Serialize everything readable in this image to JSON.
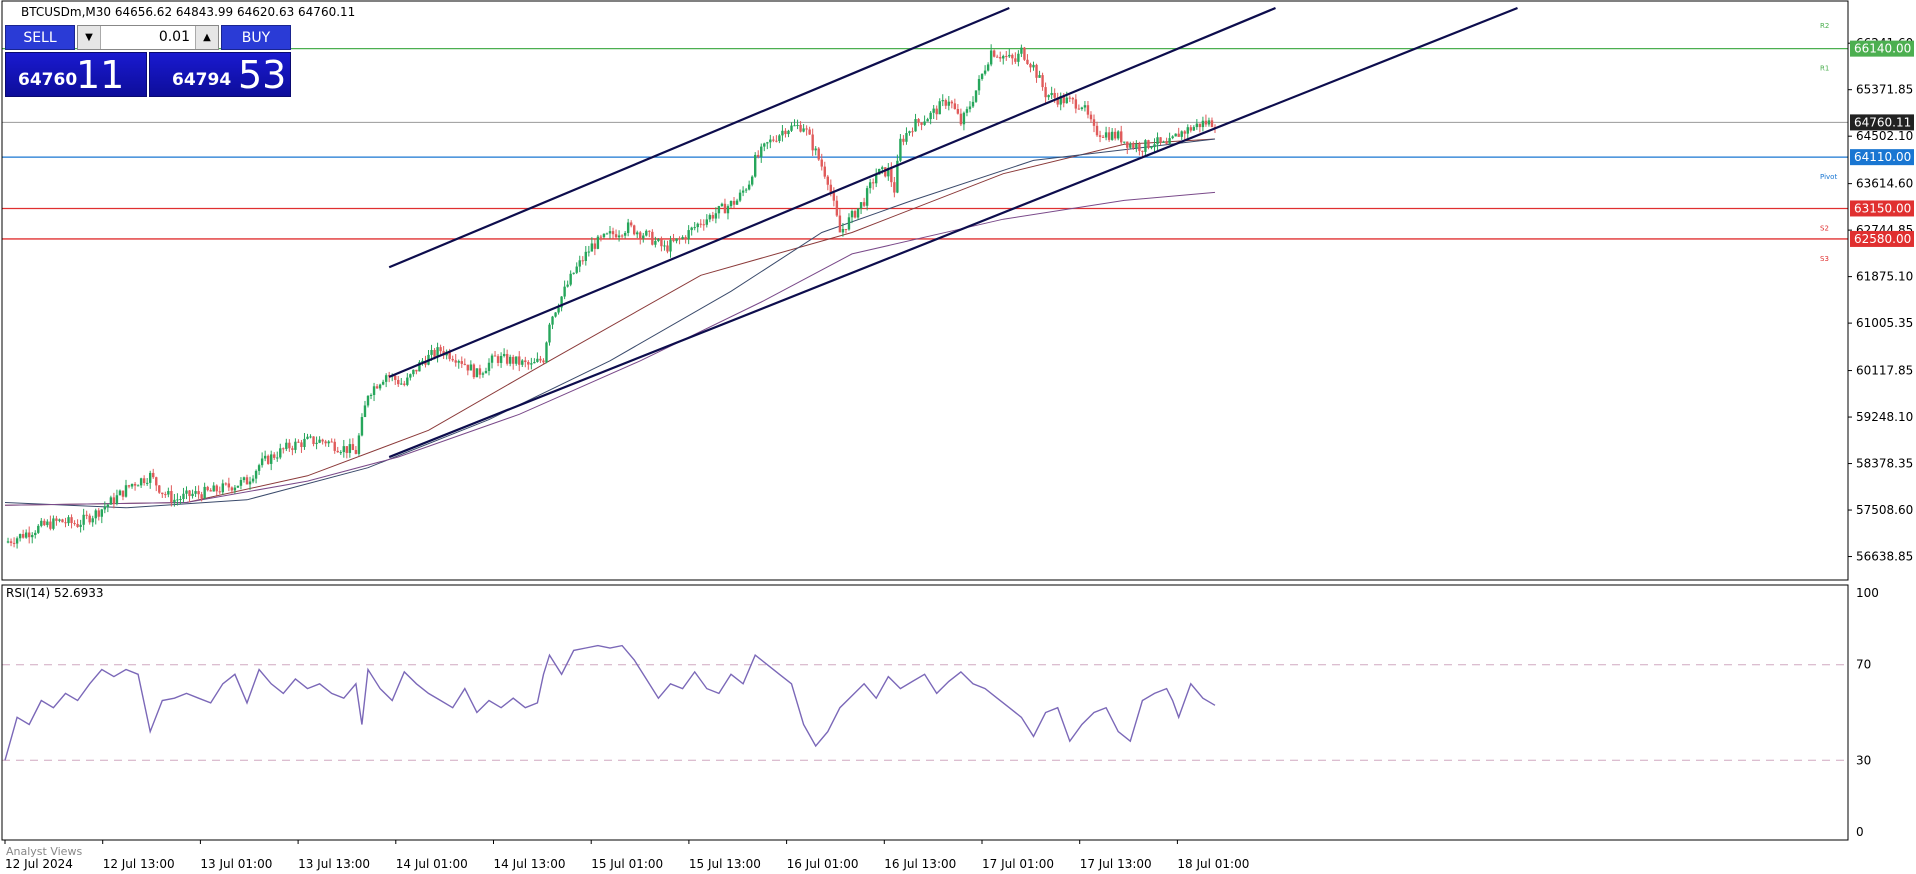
{
  "header": {
    "symbol_line": "BTCUSDm,M30  64656.62 64843.99 64620.63 64760.11"
  },
  "trade_panel": {
    "sell_label": "SELL",
    "buy_label": "BUY",
    "volume": "0.01",
    "bid_small": "64760",
    "bid_big": "11",
    "ask_small": "64794",
    "ask_big": "53"
  },
  "rsi_label": "RSI(14) 52.6933",
  "analyst_label": "Analyst Views",
  "colors": {
    "bull": "#26a65b",
    "bear": "#e05a5a",
    "channel": "#0d0d4d",
    "support": "#e03030",
    "pivot": "#1976d2",
    "resistance": "#4caf50",
    "rsi": "#7b68b8"
  },
  "chart_data": [
    {
      "type": "candlestick",
      "title": "BTCUSDm,M30",
      "ylim": [
        56200,
        66900
      ],
      "y_ticks": [
        "66241.60",
        "65371.85",
        "64502.10",
        "63614.60",
        "62744.85",
        "61875.10",
        "61005.35",
        "60117.85",
        "59248.10",
        "58378.35",
        "57508.60",
        "56638.85"
      ],
      "x_ticks": [
        "12 Jul 2024",
        "12 Jul 13:00",
        "13 Jul 01:00",
        "13 Jul 13:00",
        "14 Jul 01:00",
        "14 Jul 13:00",
        "15 Jul 01:00",
        "15 Jul 13:00",
        "16 Jul 01:00",
        "16 Jul 13:00",
        "17 Jul 01:00",
        "17 Jul 13:00",
        "18 Jul 01:00"
      ],
      "current_price": "64760.11",
      "horizontal_levels": [
        {
          "price": 66140,
          "label": "66140.00",
          "tag": "R1",
          "kind": "resistance"
        },
        {
          "price": 64110,
          "label": "64110.00",
          "tag": "Pivot",
          "kind": "pivot"
        },
        {
          "price": 63150,
          "label": "63150.00",
          "tag": "S2",
          "kind": "support"
        },
        {
          "price": 62580,
          "label": "62580.00",
          "tag": "S3",
          "kind": "support"
        }
      ],
      "r2_tag": "R2",
      "close_path": [
        [
          0,
          56900
        ],
        [
          6,
          57050
        ],
        [
          12,
          57200
        ],
        [
          18,
          57300
        ],
        [
          24,
          57250
        ],
        [
          30,
          57450
        ],
        [
          36,
          57700
        ],
        [
          42,
          58000
        ],
        [
          48,
          58150
        ],
        [
          52,
          57850
        ],
        [
          56,
          57700
        ],
        [
          62,
          57800
        ],
        [
          68,
          57850
        ],
        [
          74,
          57950
        ],
        [
          80,
          58050
        ],
        [
          84,
          58350
        ],
        [
          88,
          58500
        ],
        [
          94,
          58700
        ],
        [
          100,
          58800
        ],
        [
          106,
          58800
        ],
        [
          110,
          58700
        ],
        [
          116,
          58600
        ],
        [
          120,
          59700
        ],
        [
          126,
          60050
        ],
        [
          132,
          59850
        ],
        [
          138,
          60300
        ],
        [
          144,
          60500
        ],
        [
          150,
          60350
        ],
        [
          156,
          60050
        ],
        [
          162,
          60350
        ],
        [
          168,
          60300
        ],
        [
          174,
          60200
        ],
        [
          178,
          60350
        ],
        [
          180,
          61050
        ],
        [
          184,
          61500
        ],
        [
          188,
          61950
        ],
        [
          194,
          62450
        ],
        [
          200,
          62650
        ],
        [
          206,
          62800
        ],
        [
          212,
          62650
        ],
        [
          218,
          62400
        ],
        [
          224,
          62600
        ],
        [
          230,
          62900
        ],
        [
          236,
          63100
        ],
        [
          242,
          63300
        ],
        [
          246,
          63650
        ],
        [
          248,
          64050
        ],
        [
          252,
          64350
        ],
        [
          258,
          64650
        ],
        [
          264,
          64700
        ],
        [
          268,
          64200
        ],
        [
          272,
          63700
        ],
        [
          276,
          62700
        ],
        [
          280,
          63000
        ],
        [
          284,
          63300
        ],
        [
          288,
          63800
        ],
        [
          292,
          63850
        ],
        [
          294,
          63500
        ],
        [
          296,
          64400
        ],
        [
          300,
          64700
        ],
        [
          306,
          64900
        ],
        [
          312,
          65200
        ],
        [
          316,
          64750
        ],
        [
          318,
          64950
        ],
        [
          322,
          65500
        ],
        [
          326,
          66100
        ],
        [
          330,
          66000
        ],
        [
          334,
          65900
        ],
        [
          336,
          66100
        ],
        [
          340,
          65800
        ],
        [
          344,
          65300
        ],
        [
          348,
          65200
        ],
        [
          352,
          65150
        ],
        [
          356,
          65100
        ],
        [
          360,
          64600
        ],
        [
          364,
          64550
        ],
        [
          368,
          64500
        ],
        [
          372,
          64350
        ],
        [
          376,
          64300
        ],
        [
          380,
          64400
        ],
        [
          384,
          64300
        ],
        [
          388,
          64550
        ],
        [
          392,
          64650
        ],
        [
          396,
          64750
        ],
        [
          400,
          64760
        ]
      ],
      "sma_slow": [
        [
          0,
          57600
        ],
        [
          60,
          57650
        ],
        [
          100,
          58150
        ],
        [
          140,
          59000
        ],
        [
          180,
          60300
        ],
        [
          230,
          61900
        ],
        [
          280,
          62700
        ],
        [
          330,
          63800
        ],
        [
          370,
          64350
        ],
        [
          400,
          64450
        ]
      ],
      "sma_mid": [
        [
          0,
          57650
        ],
        [
          40,
          57550
        ],
        [
          80,
          57700
        ],
        [
          120,
          58300
        ],
        [
          160,
          59200
        ],
        [
          200,
          60300
        ],
        [
          240,
          61600
        ],
        [
          270,
          62700
        ],
        [
          300,
          63300
        ],
        [
          340,
          64050
        ],
        [
          400,
          64450
        ]
      ],
      "sma_long": [
        [
          0,
          57600
        ],
        [
          60,
          57650
        ],
        [
          100,
          58050
        ],
        [
          130,
          58500
        ],
        [
          170,
          59300
        ],
        [
          210,
          60300
        ],
        [
          250,
          61400
        ],
        [
          280,
          62300
        ],
        [
          330,
          62950
        ],
        [
          370,
          63300
        ],
        [
          400,
          63450
        ]
      ],
      "channel_lines": [
        [
          [
            127,
            62050
          ],
          [
            332,
            66900
          ]
        ],
        [
          [
            127,
            60000
          ],
          [
            420,
            66900
          ]
        ],
        [
          [
            127,
            58500
          ],
          [
            500,
            66900
          ]
        ]
      ]
    },
    {
      "type": "line",
      "title": "RSI(14) 52.6933",
      "ylim": [
        0,
        100
      ],
      "y_ticks": [
        "100",
        "70",
        "30",
        "0"
      ],
      "levels": [
        70,
        30
      ],
      "values": [
        [
          0,
          30
        ],
        [
          4,
          48
        ],
        [
          8,
          45
        ],
        [
          12,
          55
        ],
        [
          16,
          52
        ],
        [
          20,
          58
        ],
        [
          24,
          55
        ],
        [
          28,
          62
        ],
        [
          32,
          68
        ],
        [
          36,
          65
        ],
        [
          40,
          68
        ],
        [
          44,
          66
        ],
        [
          48,
          42
        ],
        [
          52,
          55
        ],
        [
          56,
          56
        ],
        [
          60,
          58
        ],
        [
          64,
          56
        ],
        [
          68,
          54
        ],
        [
          72,
          62
        ],
        [
          76,
          66
        ],
        [
          80,
          54
        ],
        [
          84,
          68
        ],
        [
          88,
          62
        ],
        [
          92,
          58
        ],
        [
          96,
          64
        ],
        [
          100,
          60
        ],
        [
          104,
          62
        ],
        [
          108,
          58
        ],
        [
          112,
          56
        ],
        [
          116,
          62
        ],
        [
          118,
          45
        ],
        [
          120,
          68
        ],
        [
          124,
          60
        ],
        [
          128,
          55
        ],
        [
          132,
          67
        ],
        [
          136,
          62
        ],
        [
          140,
          58
        ],
        [
          144,
          55
        ],
        [
          148,
          52
        ],
        [
          152,
          60
        ],
        [
          156,
          50
        ],
        [
          160,
          55
        ],
        [
          164,
          52
        ],
        [
          168,
          56
        ],
        [
          172,
          52
        ],
        [
          176,
          54
        ],
        [
          178,
          66
        ],
        [
          180,
          74
        ],
        [
          184,
          66
        ],
        [
          188,
          76
        ],
        [
          192,
          77
        ],
        [
          196,
          78
        ],
        [
          200,
          77
        ],
        [
          204,
          78
        ],
        [
          208,
          72
        ],
        [
          212,
          64
        ],
        [
          216,
          56
        ],
        [
          220,
          62
        ],
        [
          224,
          60
        ],
        [
          228,
          67
        ],
        [
          232,
          60
        ],
        [
          236,
          58
        ],
        [
          240,
          66
        ],
        [
          244,
          62
        ],
        [
          248,
          74
        ],
        [
          252,
          70
        ],
        [
          256,
          66
        ],
        [
          260,
          62
        ],
        [
          264,
          45
        ],
        [
          268,
          36
        ],
        [
          272,
          42
        ],
        [
          276,
          52
        ],
        [
          280,
          57
        ],
        [
          284,
          62
        ],
        [
          288,
          56
        ],
        [
          292,
          65
        ],
        [
          296,
          60
        ],
        [
          300,
          63
        ],
        [
          304,
          66
        ],
        [
          308,
          58
        ],
        [
          312,
          63
        ],
        [
          316,
          67
        ],
        [
          320,
          62
        ],
        [
          324,
          60
        ],
        [
          328,
          56
        ],
        [
          332,
          52
        ],
        [
          336,
          48
        ],
        [
          340,
          40
        ],
        [
          344,
          50
        ],
        [
          348,
          52
        ],
        [
          352,
          38
        ],
        [
          356,
          45
        ],
        [
          360,
          50
        ],
        [
          364,
          52
        ],
        [
          368,
          42
        ],
        [
          372,
          38
        ],
        [
          376,
          55
        ],
        [
          380,
          58
        ],
        [
          384,
          60
        ],
        [
          386,
          55
        ],
        [
          388,
          48
        ],
        [
          392,
          62
        ],
        [
          396,
          56
        ],
        [
          400,
          53
        ]
      ]
    }
  ]
}
